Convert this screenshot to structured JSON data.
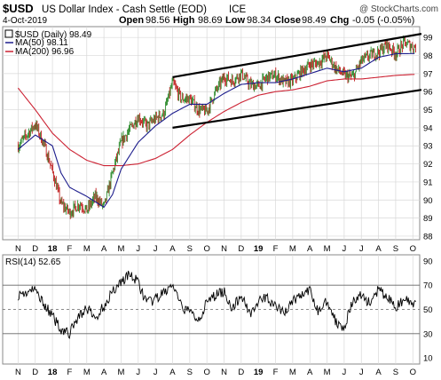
{
  "header": {
    "symbol": "$USD",
    "name": "US Dollar Index - Cash Settle (EOD)",
    "exchange": "ICE",
    "date": "4-Oct-2019",
    "open_label": "Open",
    "open": "98.56",
    "high_label": "High",
    "high": "98.69",
    "low_label": "Low",
    "low": "98.34",
    "close_label": "Close",
    "close": "98.49",
    "chg_label": "Chg",
    "chg": "-0.05 (-0.05%)",
    "watermark": "@ StockCharts.com"
  },
  "legend": {
    "price": "$USD (Daily) 98.49",
    "ma50": "MA(50) 98.11",
    "ma200": "MA(200) 96.96"
  },
  "rsi_label": "RSI(14) 52.65",
  "colors": {
    "price_up": "#2a8a2a",
    "price_down": "#c02020",
    "ma50": "#1c1c8c",
    "ma200": "#cc2233",
    "channel": "#000000",
    "grid": "#d8d8d8",
    "rsi": "#000000"
  },
  "chart_data": {
    "type": "line",
    "price_panel": {
      "ylim": [
        87.8,
        99.6
      ],
      "y_ticks": [
        88,
        89,
        90,
        91,
        92,
        93,
        94,
        95,
        96,
        97,
        98,
        99
      ],
      "x_ticks": [
        "N",
        "D",
        "18",
        "F",
        "M",
        "A",
        "M",
        "J",
        "J",
        "A",
        "S",
        "O",
        "N",
        "D",
        "19",
        "F",
        "M",
        "A",
        "M",
        "J",
        "J",
        "A",
        "S",
        "O"
      ],
      "price_knots": [
        [
          0,
          93.0
        ],
        [
          1,
          94.2
        ],
        [
          1.5,
          93.1
        ],
        [
          2,
          91.6
        ],
        [
          2.5,
          89.8
        ],
        [
          3,
          89.3
        ],
        [
          3.6,
          89.8
        ],
        [
          4,
          89.4
        ],
        [
          4.5,
          90.2
        ],
        [
          5,
          89.6
        ],
        [
          5.5,
          91.5
        ],
        [
          6,
          93.2
        ],
        [
          7,
          94.6
        ],
        [
          7.5,
          94.1
        ],
        [
          8,
          94.5
        ],
        [
          8.5,
          94.8
        ],
        [
          9,
          96.5
        ],
        [
          9.5,
          95.6
        ],
        [
          10,
          95.6
        ],
        [
          10.5,
          95.0
        ],
        [
          11,
          94.9
        ],
        [
          11.5,
          96.0
        ],
        [
          12,
          96.8
        ],
        [
          12.5,
          96.6
        ],
        [
          13,
          97.0
        ],
        [
          13.5,
          96.4
        ],
        [
          14,
          96.3
        ],
        [
          14.5,
          96.8
        ],
        [
          15,
          96.9
        ],
        [
          15.5,
          96.5
        ],
        [
          16,
          96.6
        ],
        [
          16.5,
          97.1
        ],
        [
          17,
          97.5
        ],
        [
          17.5,
          97.6
        ],
        [
          18,
          98.0
        ],
        [
          18.5,
          97.3
        ],
        [
          19,
          96.9
        ],
        [
          19.5,
          96.8
        ],
        [
          20,
          97.7
        ],
        [
          20.5,
          98.0
        ],
        [
          21,
          98.2
        ],
        [
          21.5,
          98.6
        ],
        [
          22,
          98.1
        ],
        [
          22.5,
          98.7
        ],
        [
          23,
          98.5
        ],
        [
          23.17,
          98.49
        ]
      ],
      "ma50_knots": [
        [
          0,
          92.8
        ],
        [
          1,
          93.6
        ],
        [
          2,
          93.0
        ],
        [
          2.5,
          91.5
        ],
        [
          3,
          90.7
        ],
        [
          4,
          90.2
        ],
        [
          5,
          89.6
        ],
        [
          5.5,
          90.3
        ],
        [
          6,
          91.7
        ],
        [
          7,
          93.2
        ],
        [
          8,
          94.1
        ],
        [
          9,
          94.8
        ],
        [
          10,
          95.3
        ],
        [
          11,
          95.3
        ],
        [
          12,
          95.9
        ],
        [
          13,
          96.4
        ],
        [
          14,
          96.5
        ],
        [
          15,
          96.5
        ],
        [
          16,
          96.7
        ],
        [
          17,
          97.0
        ],
        [
          18,
          97.3
        ],
        [
          19,
          97.1
        ],
        [
          20,
          97.3
        ],
        [
          21,
          97.9
        ],
        [
          22,
          98.1
        ],
        [
          23.17,
          98.11
        ]
      ],
      "ma200_knots": [
        [
          0,
          96.2
        ],
        [
          1,
          95.0
        ],
        [
          2,
          93.7
        ],
        [
          3,
          92.8
        ],
        [
          4,
          92.2
        ],
        [
          5,
          91.9
        ],
        [
          6,
          91.9
        ],
        [
          7,
          92.0
        ],
        [
          8,
          92.3
        ],
        [
          9,
          92.8
        ],
        [
          10,
          93.6
        ],
        [
          11,
          94.3
        ],
        [
          12,
          94.9
        ],
        [
          13,
          95.4
        ],
        [
          14,
          95.8
        ],
        [
          15,
          96.0
        ],
        [
          16,
          96.1
        ],
        [
          17,
          96.3
        ],
        [
          18,
          96.6
        ],
        [
          19,
          96.7
        ],
        [
          20,
          96.7
        ],
        [
          21,
          96.8
        ],
        [
          22,
          96.9
        ],
        [
          23.17,
          96.96
        ]
      ],
      "channel_upper": [
        [
          9,
          96.8
        ],
        [
          23.5,
          99.2
        ]
      ],
      "channel_lower": [
        [
          9,
          94.0
        ],
        [
          23.5,
          96.1
        ]
      ]
    },
    "rsi_panel": {
      "ylim": [
        5,
        95
      ],
      "y_ticks": [
        10,
        30,
        50,
        70,
        90
      ],
      "reference_lines": [
        30,
        50,
        70
      ],
      "x_ticks": [
        "N",
        "D",
        "18",
        "F",
        "M",
        "A",
        "M",
        "J",
        "J",
        "A",
        "S",
        "O",
        "N",
        "D",
        "19",
        "F",
        "M",
        "A",
        "M",
        "J",
        "J",
        "A",
        "S",
        "O"
      ],
      "rsi_knots": [
        [
          0,
          62
        ],
        [
          1,
          66
        ],
        [
          1.5,
          55
        ],
        [
          2,
          44
        ],
        [
          2.5,
          34
        ],
        [
          3,
          30
        ],
        [
          3.5,
          44
        ],
        [
          4,
          51
        ],
        [
          4.5,
          42
        ],
        [
          5,
          53
        ],
        [
          5.5,
          65
        ],
        [
          6,
          73
        ],
        [
          6.5,
          79
        ],
        [
          7,
          72
        ],
        [
          7.5,
          55
        ],
        [
          8,
          58
        ],
        [
          8.5,
          64
        ],
        [
          9,
          70
        ],
        [
          9.5,
          52
        ],
        [
          10,
          48
        ],
        [
          10.5,
          42
        ],
        [
          11,
          55
        ],
        [
          11.5,
          62
        ],
        [
          12,
          65
        ],
        [
          12.5,
          50
        ],
        [
          13,
          62
        ],
        [
          13.5,
          47
        ],
        [
          14,
          56
        ],
        [
          14.5,
          60
        ],
        [
          15,
          52
        ],
        [
          15.5,
          47
        ],
        [
          16,
          57
        ],
        [
          16.5,
          62
        ],
        [
          17,
          65
        ],
        [
          17.5,
          48
        ],
        [
          18,
          58
        ],
        [
          18.5,
          40
        ],
        [
          19,
          36
        ],
        [
          19.5,
          56
        ],
        [
          20,
          62
        ],
        [
          20.5,
          55
        ],
        [
          21,
          66
        ],
        [
          21.5,
          60
        ],
        [
          22,
          52
        ],
        [
          22.5,
          58
        ],
        [
          23,
          55
        ],
        [
          23.17,
          52.65
        ]
      ]
    }
  }
}
